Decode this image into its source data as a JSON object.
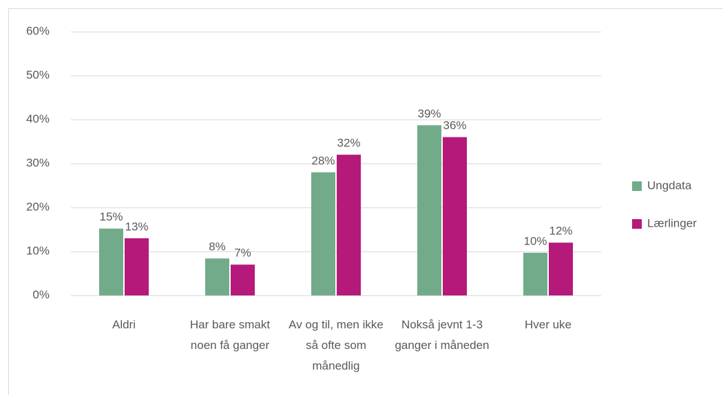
{
  "chart_data": {
    "type": "bar",
    "categories": [
      "Aldri",
      "Har bare smakt noen få ganger",
      "Av og til, men ikke så ofte som månedlig",
      "Nokså jevnt 1-3 ganger i måneden",
      "Hver uke"
    ],
    "series": [
      {
        "name": "Ungdata",
        "color": "#72ab8a",
        "values": [
          15.2,
          8.4,
          28,
          38.7,
          9.7
        ],
        "value_labels": [
          "15%",
          "8%",
          "28%",
          "39%",
          "10%"
        ]
      },
      {
        "name": "Lærlinger",
        "color": "#b5197a",
        "values": [
          13,
          7,
          32,
          36,
          12
        ],
        "value_labels": [
          "13%",
          "7%",
          "32%",
          "36%",
          "12%"
        ]
      }
    ],
    "ylim": [
      0,
      60
    ],
    "yticks": [
      {
        "value": 0,
        "label": "0%"
      },
      {
        "value": 10,
        "label": "10%"
      },
      {
        "value": 20,
        "label": "20%"
      },
      {
        "value": 30,
        "label": "30%"
      },
      {
        "value": 40,
        "label": "40%"
      },
      {
        "value": 50,
        "label": "50%"
      },
      {
        "value": 60,
        "label": "60%"
      }
    ],
    "grid": true,
    "legend": "right"
  }
}
